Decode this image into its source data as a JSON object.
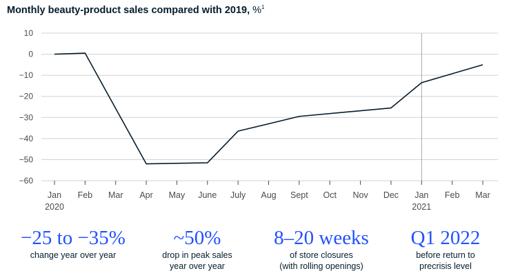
{
  "title": {
    "main": "Monthly beauty-product sales compared with 2019,",
    "unit": "%",
    "footnote": "1"
  },
  "chart_data": {
    "type": "line",
    "title": "Monthly beauty-product sales compared with 2019, %",
    "xlabel": "",
    "ylabel": "",
    "x": [
      "Jan",
      "Feb",
      "Mar",
      "Apr",
      "May",
      "June",
      "July",
      "Aug",
      "Sept",
      "Oct",
      "Nov",
      "Dec",
      "Jan",
      "Feb",
      "Mar"
    ],
    "year_labels": [
      {
        "index": 0,
        "label": "2020"
      },
      {
        "index": 12,
        "label": "2021"
      }
    ],
    "series": [
      {
        "values": [
          0,
          0.5,
          null,
          -52,
          null,
          -51.5,
          -36.5,
          null,
          -29.5,
          null,
          null,
          -25.5,
          -13.5,
          null,
          -5
        ]
      }
    ],
    "ylim": [
      -60,
      10
    ],
    "yticks": [
      "10",
      "0",
      "−10",
      "−20",
      "−30",
      "−40",
      "−50",
      "−60"
    ],
    "ytick_values": [
      10,
      0,
      -10,
      -20,
      -30,
      -40,
      -50,
      -60
    ],
    "grid": true,
    "reference_line_index": 12,
    "line_color": "#051c2c",
    "grid_color": "#d0d0d0"
  },
  "stats": [
    {
      "value": "−25 to −35%",
      "desc": [
        "change year over year"
      ]
    },
    {
      "value": "~50%",
      "desc": [
        "drop in peak sales",
        "year over year"
      ]
    },
    {
      "value": "8–20 weeks",
      "desc": [
        "of store closures",
        "(with rolling openings)"
      ]
    },
    {
      "value": "Q1 2022",
      "desc": [
        "before return to",
        "precrisis level"
      ]
    }
  ],
  "accent_color": "#2251ff"
}
